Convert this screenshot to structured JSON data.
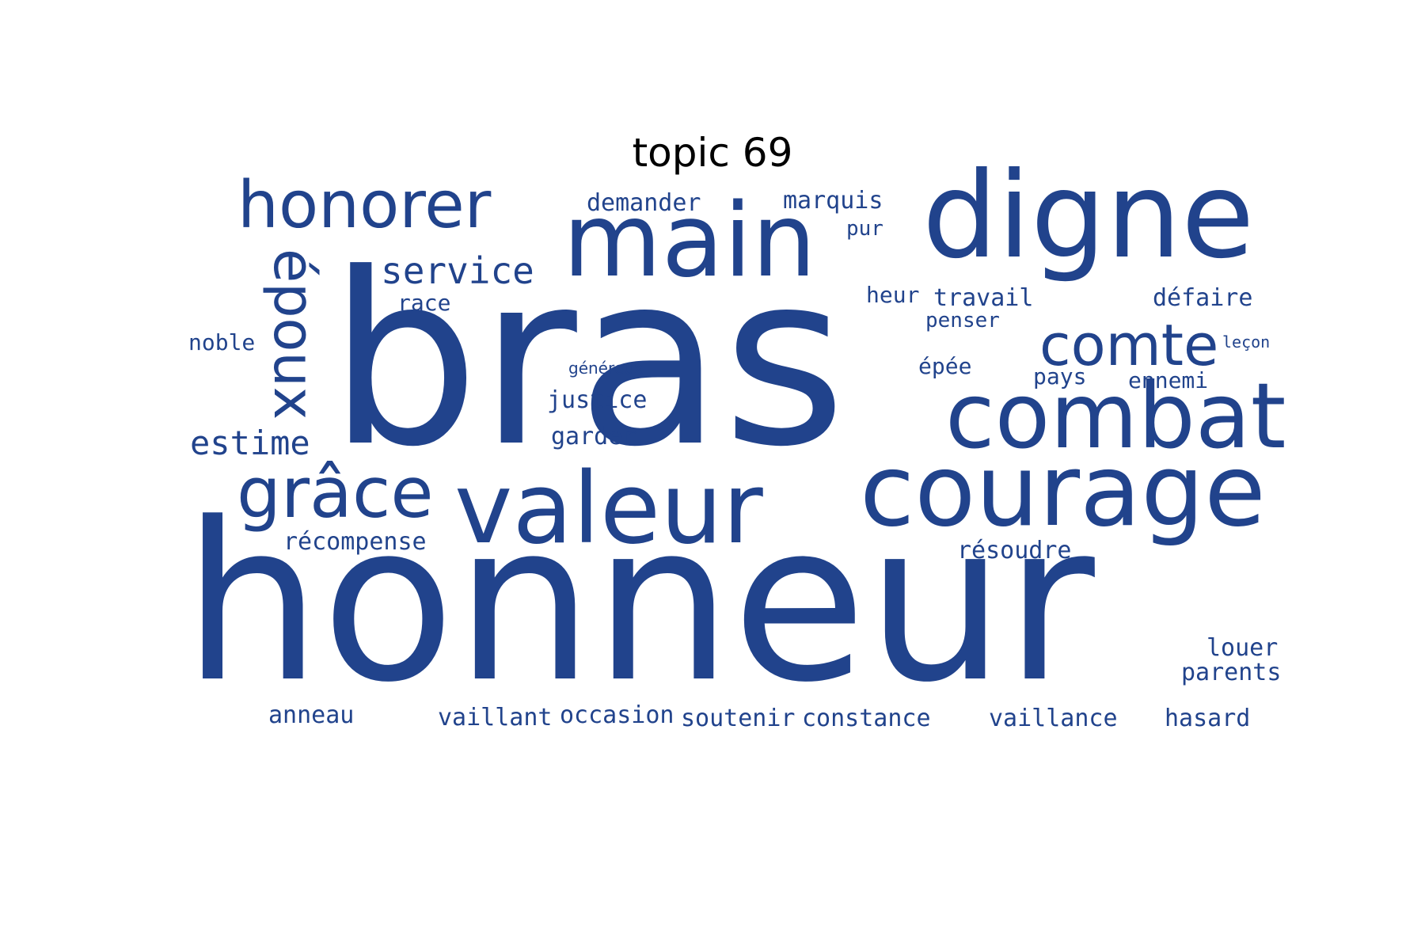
{
  "title": "topic 69",
  "colors": {
    "word": "#21438c",
    "background": "#ffffff",
    "title": "#000000"
  },
  "words": {
    "honneur": "honneur",
    "bras": "bras",
    "main": "main",
    "digne": "digne",
    "honorer": "honorer",
    "epoux": "époux",
    "valeur": "valeur",
    "courage": "courage",
    "combat": "combat",
    "comte": "comte",
    "grace": "grâce",
    "service": "service",
    "estime": "estime",
    "demander": "demander",
    "marquis": "marquis",
    "pur": "pur",
    "race": "race",
    "heur": "heur",
    "travail": "travail",
    "defaire": "défaire",
    "penser": "penser",
    "noble": "noble",
    "lecon": "leçon",
    "genereux": "généreux",
    "epee": "épée",
    "pays": "pays",
    "ennemi": "ennemi",
    "justice": "justice",
    "garder": "garder",
    "recompense": "récompense",
    "resoudre": "résoudre",
    "louer": "louer",
    "parents": "parents",
    "anneau": "anneau",
    "vaillant": "vaillant",
    "occasion": "occasion",
    "soutenir": "soutenir",
    "constance": "constance",
    "vaillance": "vaillance",
    "hasard": "hasard"
  }
}
